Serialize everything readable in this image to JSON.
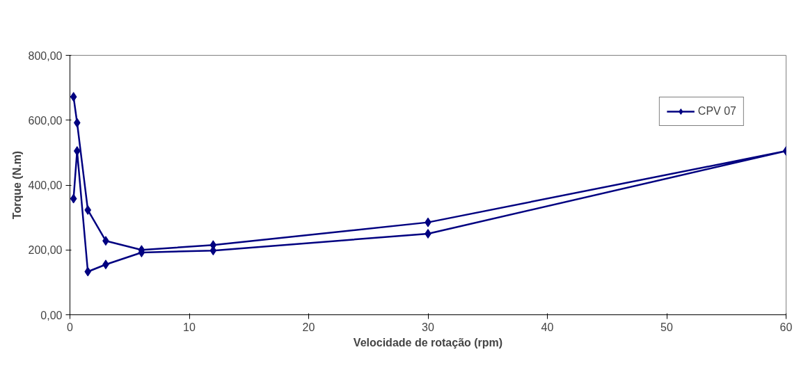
{
  "chart_data": {
    "type": "line",
    "xlabel": "Velocidade de rotação (rpm)",
    "ylabel": "Torque (N.m)",
    "xlim": [
      0,
      60
    ],
    "xticks": [
      0,
      10,
      20,
      30,
      40,
      50,
      60
    ],
    "ylim": [
      0,
      800
    ],
    "yticks": [
      {
        "value": 0,
        "label": "0,00"
      },
      {
        "value": 200,
        "label": "200,00"
      },
      {
        "value": 400,
        "label": "400,00"
      },
      {
        "value": 600,
        "label": "600,00"
      },
      {
        "value": 800,
        "label": "800,00"
      }
    ],
    "grid": false,
    "legend": "top right",
    "marker": "diamond",
    "line_style": "solid",
    "series": [
      {
        "name": "CPV 07",
        "color": "#000080",
        "x": [
          0.3,
          0.6,
          1.5,
          3,
          6,
          12,
          30,
          60,
          30,
          12,
          6,
          3,
          1.5,
          0.6,
          0.3
        ],
        "values": [
          358,
          505,
          133,
          155,
          192,
          198,
          250,
          505,
          285,
          215,
          200,
          228,
          323,
          592,
          672
        ]
      }
    ]
  }
}
